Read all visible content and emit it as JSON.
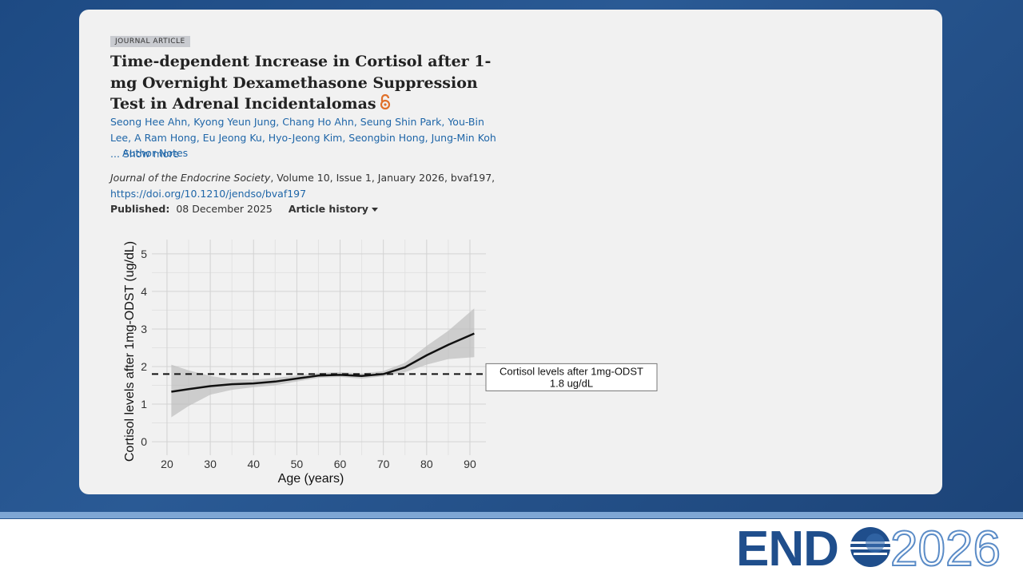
{
  "article": {
    "type": "JOURNAL ARTICLE",
    "title": "Time-dependent Increase in Cortisol after 1-mg Overnight Dexamethasone Suppression Test in Adrenal Incidentalomas",
    "authors": "Seong Hee Ahn, Kyong Yeun Jung, Chang Ho Ahn, Seung Shin Park, You-Bin Lee, A Ram Hong, Eu Jeong Ku, Hyo-Jeong Kim, Seongbin Hong, Jung-Min Koh ...",
    "show_more": "Show more",
    "author_notes": "Author Notes",
    "journal": "Journal of the Endocrine Society",
    "citation": ", Volume 10, Issue 1, January 2026, bvaf197,",
    "doi": "https://doi.org/10.1210/jendso/bvaf197",
    "published_label": "Published:",
    "published_date": "08 December 2025",
    "article_history": "Article history"
  },
  "chart_data": {
    "type": "line",
    "x_label": "Age (years)",
    "y_label": "Cortisol levels after 1mg-ODST (ug/dL)",
    "x": [
      21,
      25,
      30,
      35,
      40,
      45,
      50,
      55,
      60,
      65,
      70,
      75,
      80,
      85,
      91
    ],
    "series": [
      {
        "color": "#111111",
        "values": [
          1.33,
          1.4,
          1.48,
          1.53,
          1.55,
          1.6,
          1.68,
          1.76,
          1.78,
          1.75,
          1.8,
          1.98,
          2.3,
          2.58,
          2.88
        ]
      }
    ],
    "band": {
      "color": "#bdbdbd",
      "lower": [
        0.65,
        0.95,
        1.25,
        1.38,
        1.45,
        1.5,
        1.6,
        1.7,
        1.72,
        1.68,
        1.74,
        1.85,
        2.05,
        2.2,
        2.25
      ],
      "upper": [
        2.05,
        1.9,
        1.75,
        1.66,
        1.65,
        1.7,
        1.76,
        1.83,
        1.85,
        1.82,
        1.88,
        2.1,
        2.55,
        2.95,
        3.55
      ]
    },
    "reference_line": {
      "value": 1.8,
      "label_lines": [
        "Cortisol levels after 1mg-ODST",
        "1.8 ug/dL"
      ]
    },
    "xlim": [
      16.5,
      93.7
    ],
    "ylim": [
      -0.36,
      5.38
    ],
    "xticks": [
      20,
      30,
      40,
      50,
      60,
      70,
      80,
      90
    ],
    "yticks": [
      0,
      1,
      2,
      3,
      4,
      5
    ],
    "grid": true
  },
  "logo": {
    "name": "END",
    "year": "2026"
  }
}
